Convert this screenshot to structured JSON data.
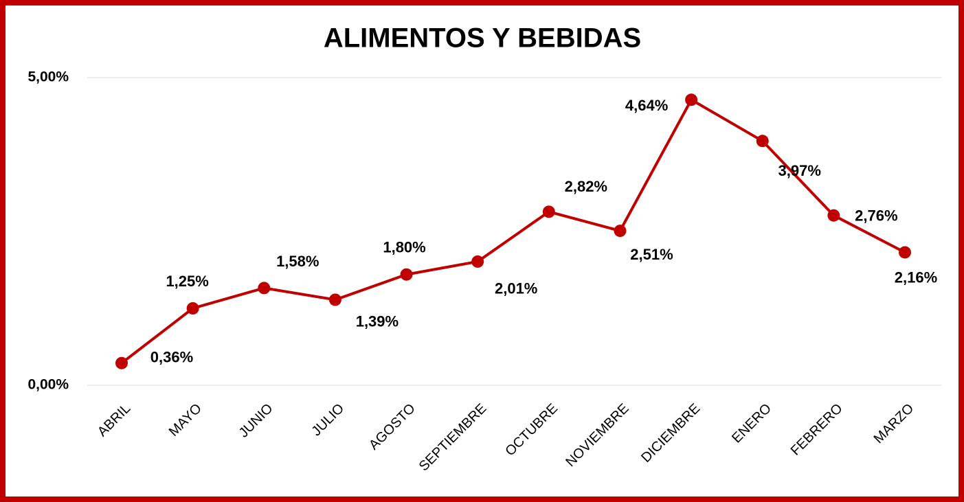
{
  "chart_data": {
    "type": "line",
    "title": "ALIMENTOS Y BEBIDAS",
    "categories": [
      "ABRIL",
      "MAYO",
      "JUNIO",
      "JULIO",
      "AGOSTO",
      "SEPTIEMBRE",
      "OCTUBRE",
      "NOVIEMBRE",
      "DICIEMBRE",
      "ENERO",
      "FEBRERO",
      "MARZO"
    ],
    "series": [
      {
        "name": "ALIMENTOS Y BEBIDAS",
        "color": "#c00000",
        "values": [
          0.36,
          1.25,
          1.58,
          1.39,
          1.8,
          2.01,
          2.82,
          2.51,
          4.64,
          3.97,
          2.76,
          2.16
        ],
        "value_labels": [
          "0,36%",
          "1,25%",
          "1,58%",
          "1,39%",
          "1,80%",
          "2,01%",
          "2,82%",
          "2,51%",
          "4,64%",
          "3,97%",
          "2,76%",
          "2,16%"
        ]
      }
    ],
    "ylim": [
      0,
      5
    ],
    "yticks": [
      {
        "value": 0,
        "label": "0,00%"
      },
      {
        "value": 5,
        "label": "5,00%"
      }
    ],
    "grid": true
  }
}
